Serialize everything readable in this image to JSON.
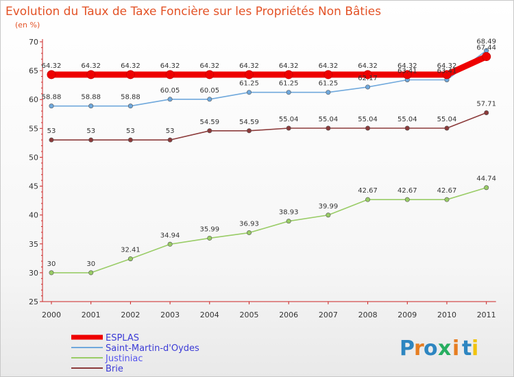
{
  "chart_data": {
    "type": "line",
    "title": "Evolution du Taux de Taxe Foncière sur les Propriétés Non Bâties",
    "unit_label": "(en %)",
    "xlabel": "",
    "ylabel": "",
    "ylim": [
      25,
      70
    ],
    "yticks": [
      25,
      30,
      35,
      40,
      45,
      50,
      55,
      60,
      65,
      70
    ],
    "grid": false,
    "legend_position": "bottom-left",
    "x": [
      "2000",
      "2001",
      "2002",
      "2003",
      "2004",
      "2005",
      "2006",
      "2007",
      "2008",
      "2009",
      "2010",
      "2011"
    ],
    "series": [
      {
        "name": "ESPLAS",
        "color": "#ee0000",
        "values": [
          64.32,
          64.32,
          64.32,
          64.32,
          64.32,
          64.32,
          64.32,
          64.32,
          64.32,
          64.32,
          64.32,
          67.44
        ],
        "labels": [
          "64.32",
          "64.32",
          "64.32",
          "64.32",
          "64.32",
          "64.32",
          "64.32",
          "64.32",
          "64.32",
          "64.32",
          "64.32",
          "67.44"
        ]
      },
      {
        "name": "Saint-Martin-d'Oydes",
        "color": "#6fa8dc",
        "values": [
          58.88,
          58.88,
          58.88,
          60.05,
          60.05,
          61.25,
          61.25,
          61.25,
          62.17,
          63.41,
          63.41,
          68.49
        ],
        "labels": [
          "58.88",
          "58.88",
          "58.88",
          "60.05",
          "60.05",
          "61.25",
          "61.25",
          "61.25",
          "62.17",
          "63.41",
          "63.41",
          "68.49"
        ]
      },
      {
        "name": "Justiniac",
        "color": "#99cc66",
        "values": [
          30,
          30,
          32.41,
          34.94,
          35.99,
          36.93,
          38.93,
          39.99,
          42.67,
          42.67,
          42.67,
          44.74
        ],
        "labels": [
          "30",
          "30",
          "32.41",
          "34.94",
          "35.99",
          "36.93",
          "38.93",
          "39.99",
          "42.67",
          "42.67",
          "42.67",
          "44.74"
        ]
      },
      {
        "name": "Brie",
        "color": "#8b3a3a",
        "values": [
          53,
          53,
          53,
          53,
          54.59,
          54.59,
          55.04,
          55.04,
          55.04,
          55.04,
          55.04,
          57.71
        ],
        "labels": [
          "53",
          "53",
          "53",
          "53",
          "54.59",
          "54.59",
          "55.04",
          "55.04",
          "55.04",
          "55.04",
          "55.04",
          "57.71"
        ]
      }
    ]
  },
  "logo": {
    "letters": [
      "P",
      "r",
      "o",
      "x",
      "i",
      "t",
      "i"
    ],
    "colors": [
      "#2e86c1",
      "#e67e22",
      "#2e86c1",
      "#27ae60",
      "#e67e22",
      "#2e86c1",
      "#f1c40f"
    ]
  },
  "colors": {
    "title": "#e35226",
    "axis": "#cc2222"
  }
}
